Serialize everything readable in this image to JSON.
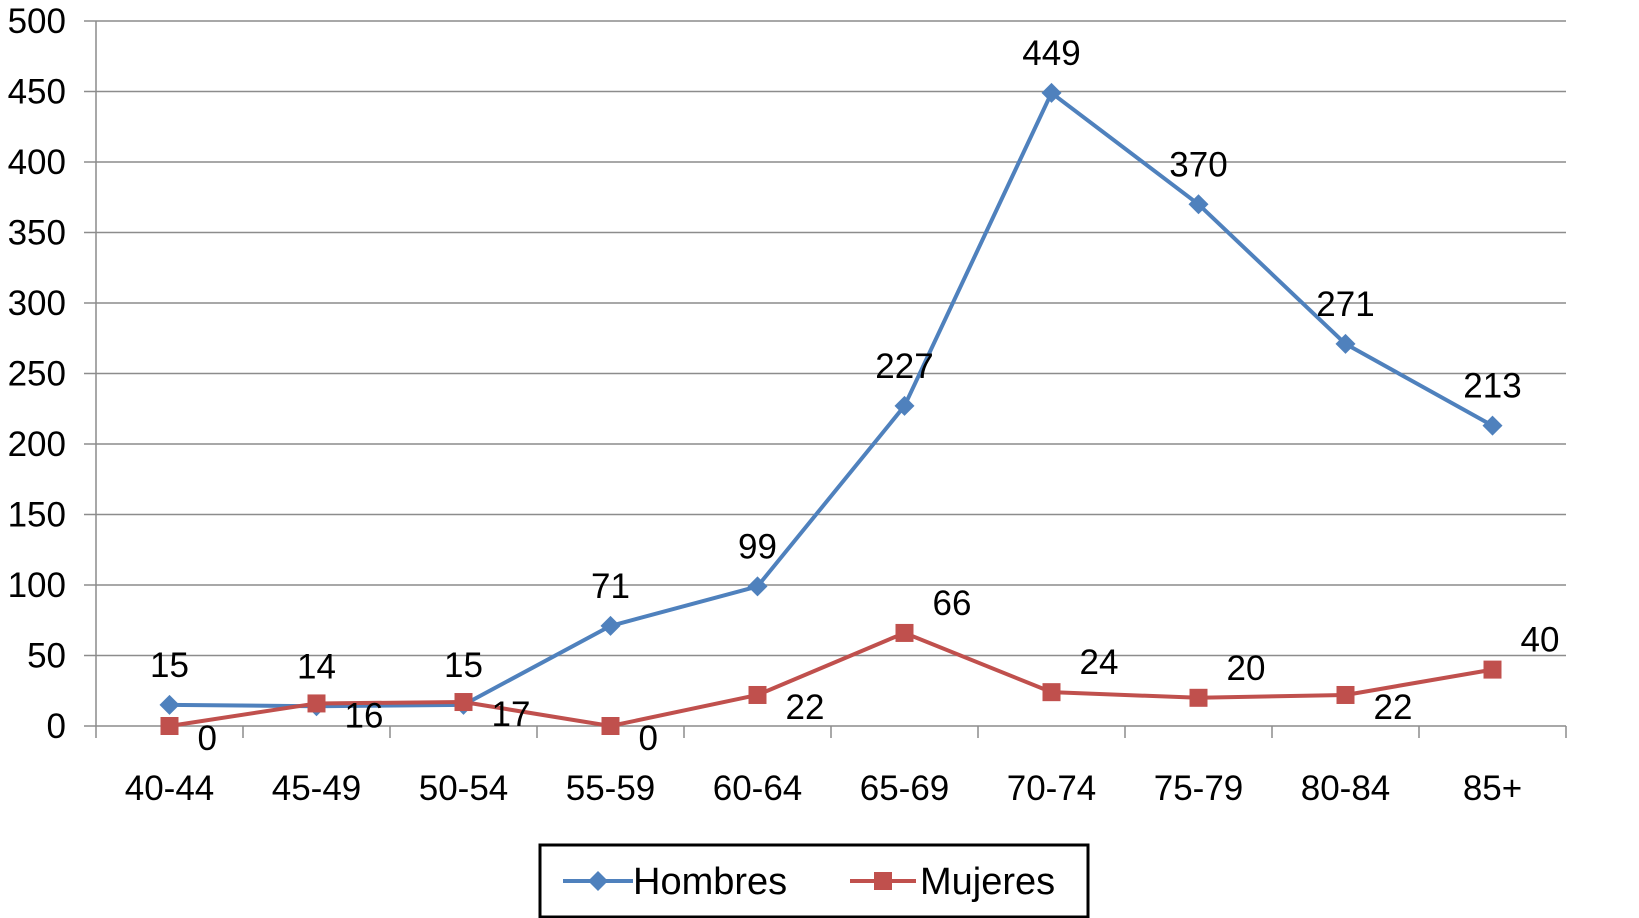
{
  "chart_data": {
    "type": "line",
    "categories": [
      "40-44",
      "45-49",
      "50-54",
      "55-59",
      "60-64",
      "65-69",
      "70-74",
      "75-79",
      "80-84",
      "85+"
    ],
    "series": [
      {
        "name": "Hombres",
        "values": [
          15,
          14,
          15,
          71,
          99,
          227,
          449,
          370,
          271,
          213
        ],
        "color": "#4f81bd",
        "marker": "diamond"
      },
      {
        "name": "Mujeres",
        "values": [
          0,
          16,
          17,
          0,
          22,
          66,
          24,
          20,
          22,
          40
        ],
        "color": "#c0504d",
        "marker": "square"
      }
    ],
    "ylim": [
      0,
      500
    ],
    "yticks": [
      "0",
      "50",
      "100",
      "150",
      "200",
      "250",
      "300",
      "350",
      "400",
      "450",
      "500"
    ],
    "title": "",
    "xlabel": "",
    "ylabel": "",
    "grid": true,
    "legend": "bottom",
    "data_labels": true
  }
}
